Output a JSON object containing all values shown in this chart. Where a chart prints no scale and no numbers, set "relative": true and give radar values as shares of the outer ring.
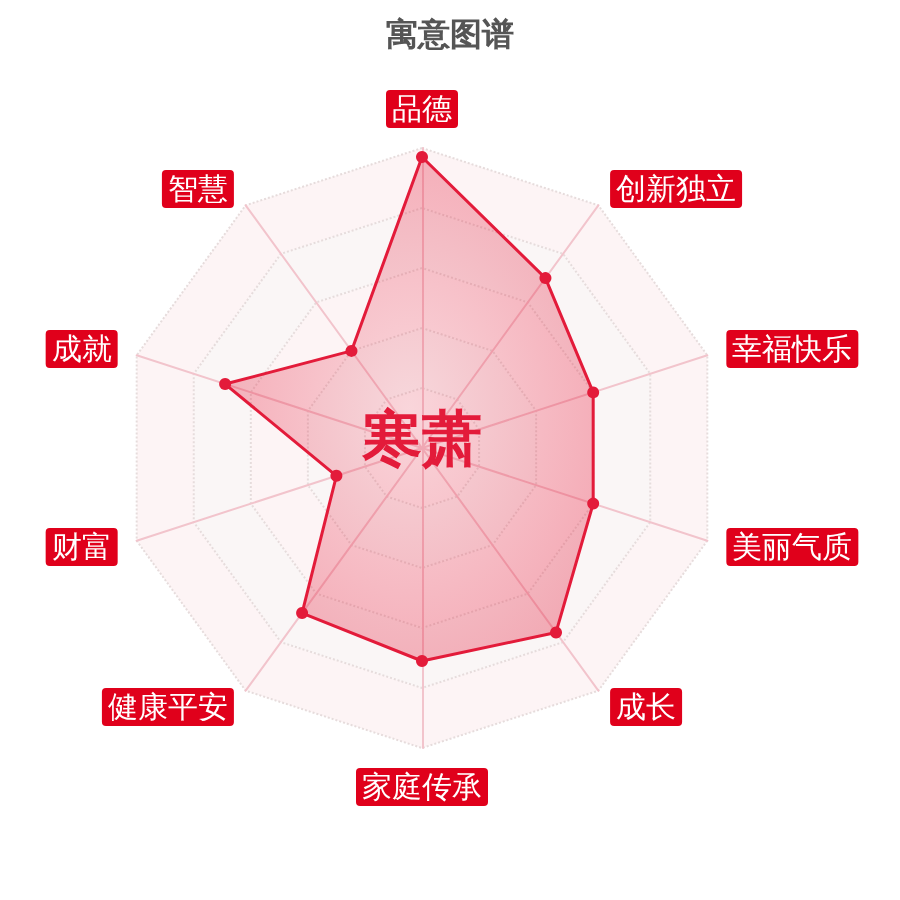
{
  "chart_data": {
    "type": "radar",
    "title": "寓意图谱",
    "relative": true,
    "grid": true,
    "marker": "circle",
    "categories": [
      "品德",
      "创新独立",
      "幸福快乐",
      "美丽气质",
      "成长",
      "家庭传承",
      "健康平安",
      "财富",
      "成就",
      "智慧"
    ],
    "series": [
      {
        "color": "#e31b3a",
        "values": [
          0.97,
          0.7,
          0.6,
          0.6,
          0.76,
          0.71,
          0.68,
          0.3,
          0.69,
          0.4
        ]
      }
    ],
    "annotations": [
      "寒萧"
    ]
  }
}
